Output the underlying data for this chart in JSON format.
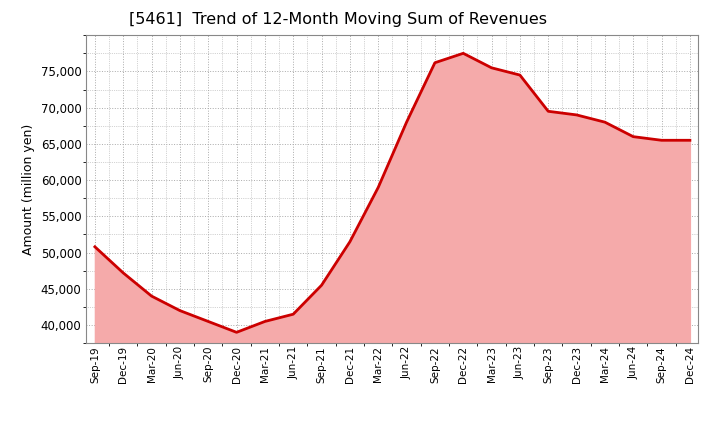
{
  "title": "[5461]  Trend of 12-Month Moving Sum of Revenues",
  "ylabel": "Amount (million yen)",
  "line_color": "#cc0000",
  "fill_color": "#f5aaaa",
  "background_color": "#ffffff",
  "grid_color": "#aaaaaa",
  "x_labels": [
    "Sep-19",
    "Dec-19",
    "Mar-20",
    "Jun-20",
    "Sep-20",
    "Dec-20",
    "Mar-21",
    "Jun-21",
    "Sep-21",
    "Dec-21",
    "Mar-22",
    "Jun-22",
    "Sep-22",
    "Dec-22",
    "Mar-23",
    "Jun-23",
    "Sep-23",
    "Dec-23",
    "Mar-24",
    "Jun-24",
    "Sep-24",
    "Dec-24"
  ],
  "values": [
    50800,
    47200,
    44000,
    42000,
    40500,
    39000,
    40500,
    41500,
    45500,
    51500,
    59000,
    68000,
    76200,
    77500,
    75500,
    74500,
    69500,
    69000,
    68000,
    66000,
    65500,
    65500
  ],
  "ylim": [
    37500,
    80000
  ],
  "yticks": [
    40000,
    45000,
    50000,
    55000,
    60000,
    65000,
    70000,
    75000
  ]
}
